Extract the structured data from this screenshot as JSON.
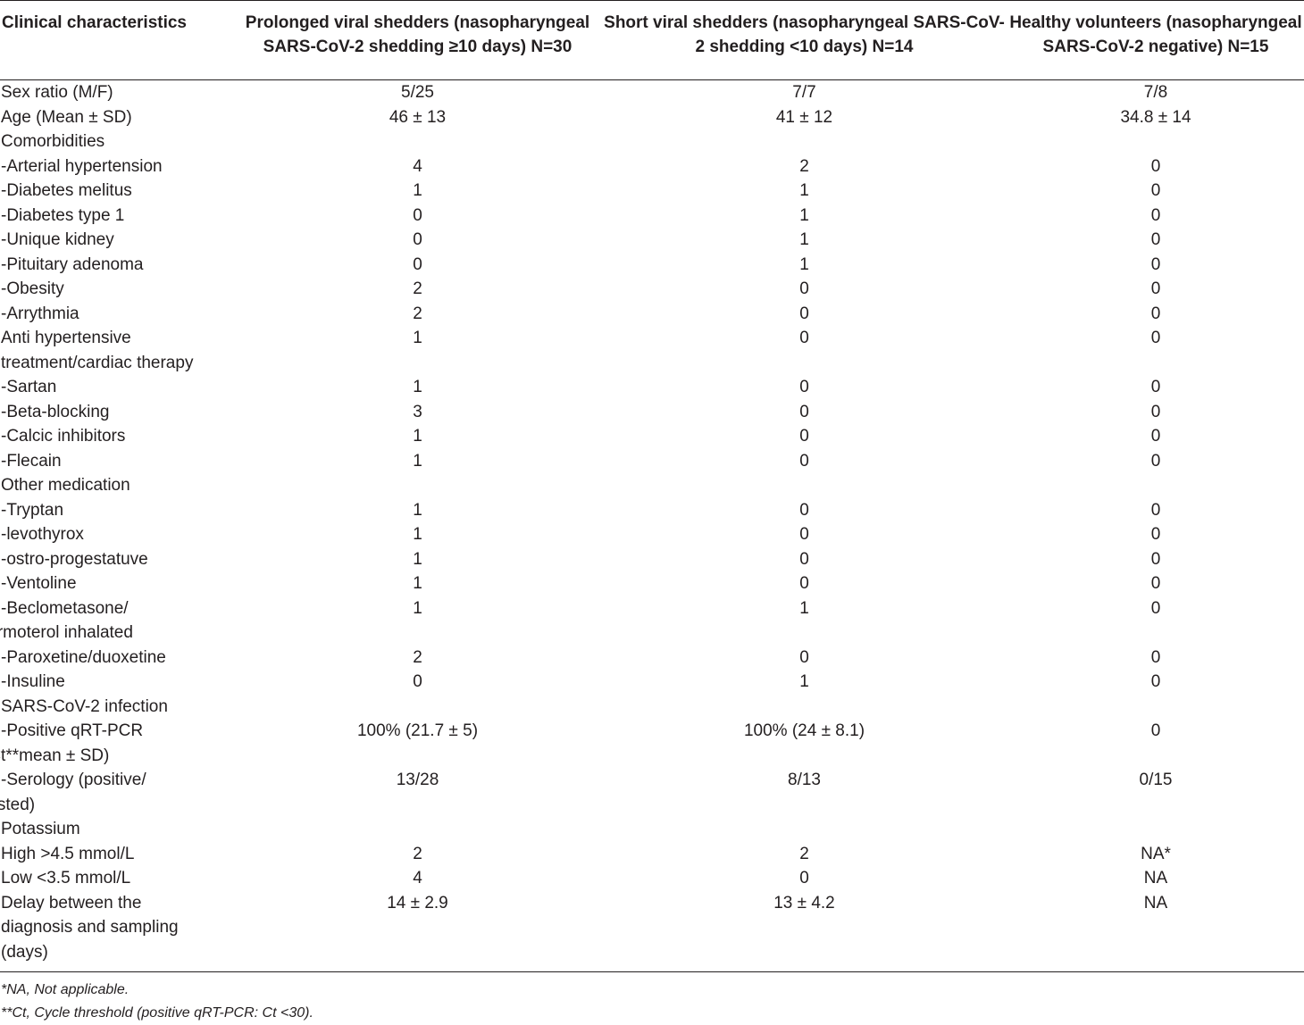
{
  "columns": [
    "Clinical characteristics",
    "Prolonged viral shedders (nasopharyngeal SARS-CoV-2 shedding ≥10 days) N=30",
    "Short viral shedders (nasopharyngeal SARS-CoV-2 shedding <10 days) N=14",
    "Healthy volunteers (nasopharyngeal SARS-CoV-2 negative) N=15"
  ],
  "rows": [
    {
      "label": "Sex ratio (M/F)",
      "v": [
        "5/25",
        "7/7",
        "7/8"
      ]
    },
    {
      "label": "Age (Mean ± SD)",
      "v": [
        "46 ± 13",
        "41 ± 12",
        "34.8 ± 14"
      ]
    },
    {
      "label": "Comorbidities",
      "v": [
        "",
        "",
        ""
      ]
    },
    {
      "label": "-Arterial hypertension",
      "v": [
        "4",
        "2",
        "0"
      ]
    },
    {
      "label": "-Diabetes melitus",
      "v": [
        "1",
        "1",
        "0"
      ]
    },
    {
      "label": "-Diabetes type 1",
      "v": [
        "0",
        "1",
        "0"
      ]
    },
    {
      "label": "-Unique kidney",
      "v": [
        "0",
        "1",
        "0"
      ]
    },
    {
      "label": "-Pituitary adenoma",
      "v": [
        "0",
        "1",
        "0"
      ]
    },
    {
      "label": "-Obesity",
      "v": [
        "2",
        "0",
        "0"
      ]
    },
    {
      "label": "-Arrythmia",
      "v": [
        "2",
        "0",
        "0"
      ]
    },
    {
      "label": "Anti hypertensive",
      "label2": "treatment/cardiac therapy",
      "v": [
        "1",
        "0",
        "0"
      ]
    },
    {
      "label": "-Sartan",
      "v": [
        "1",
        "0",
        "0"
      ]
    },
    {
      "label": "-Beta-blocking",
      "v": [
        "3",
        "0",
        "0"
      ]
    },
    {
      "label": "-Calcic inhibitors",
      "v": [
        "1",
        "0",
        "0"
      ]
    },
    {
      "label": "-Flecain",
      "v": [
        "1",
        "0",
        "0"
      ]
    },
    {
      "label": "Other medication",
      "v": [
        "",
        "",
        ""
      ]
    },
    {
      "label": "-Tryptan",
      "v": [
        "1",
        "0",
        "0"
      ]
    },
    {
      "label": "-levothyrox",
      "v": [
        "1",
        "0",
        "0"
      ]
    },
    {
      "label": "-ostro-progestatuve",
      "v": [
        "1",
        "0",
        "0"
      ]
    },
    {
      "label": "-Ventoline",
      "v": [
        "1",
        "0",
        "0"
      ]
    },
    {
      "label": "-Beclometasone/",
      "label2": "formoterol inhalated",
      "v": [
        "1",
        "1",
        "0"
      ]
    },
    {
      "label": "-Paroxetine/duoxetine",
      "v": [
        "2",
        "0",
        "0"
      ]
    },
    {
      "label": "-Insuline",
      "v": [
        "0",
        "1",
        "0"
      ]
    },
    {
      "label": "SARS-CoV-2 infection",
      "v": [
        "",
        "",
        ""
      ]
    },
    {
      "label": "-Positive qRT-PCR",
      "label2": "(Ct**mean ± SD)",
      "v": [
        "100% (21.7 ± 5)",
        "100% (24 ± 8.1)",
        "0"
      ]
    },
    {
      "label": "-Serology (positive/",
      "label2": "tested)",
      "v": [
        "13/28",
        "8/13",
        "0/15"
      ]
    },
    {
      "label": "Potassium",
      "v": [
        "",
        "",
        ""
      ]
    },
    {
      "label": "High >4.5 mmol/L",
      "v": [
        "2",
        "2",
        "NA*"
      ]
    },
    {
      "label": "Low <3.5 mmol/L",
      "v": [
        "4",
        "0",
        "NA"
      ]
    },
    {
      "label": "Delay between the",
      "label2": "diagnosis and sampling",
      "label3": "(days)",
      "v": [
        "14 ± 2.9",
        "13 ± 4.2",
        "NA"
      ]
    }
  ],
  "footnotes": [
    "*NA, Not applicable.",
    "**Ct, Cycle threshold (positive qRT-PCR: Ct <30)."
  ]
}
